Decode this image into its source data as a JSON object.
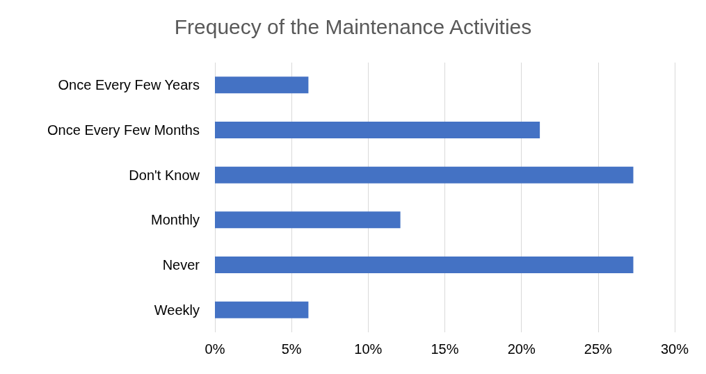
{
  "chart_data": {
    "type": "bar",
    "orientation": "horizontal",
    "title": "Frequecy of the Maintenance Activities",
    "categories": [
      "Once Every Few Years",
      "Once Every Few Months",
      "Don't Know",
      "Monthly",
      "Never",
      "Weekly"
    ],
    "values": [
      6.1,
      21.2,
      27.3,
      12.1,
      27.3,
      6.1
    ],
    "color": "#4472c4",
    "xlim": [
      0,
      30
    ],
    "xticks": [
      {
        "value": 0,
        "label": "0%"
      },
      {
        "value": 5,
        "label": "5%"
      },
      {
        "value": 10,
        "label": "10%"
      },
      {
        "value": 15,
        "label": "15%"
      },
      {
        "value": 20,
        "label": "20%"
      },
      {
        "value": 25,
        "label": "25%"
      },
      {
        "value": 30,
        "label": "30%"
      }
    ],
    "grid": "x"
  }
}
